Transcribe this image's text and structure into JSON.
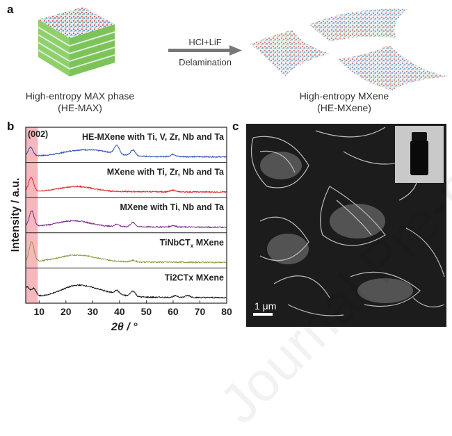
{
  "panel_a": {
    "label": "a",
    "left_caption_line1": "High-entropy MAX phase",
    "left_caption_line2": "(HE-MAX)",
    "arrow_top": "HCl+LiF",
    "arrow_bottom": "Delamination",
    "right_caption_line1": "High-entropy MXene",
    "right_caption_line2": "(HE-MXene)"
  },
  "panel_b": {
    "label": "b"
  },
  "panel_c": {
    "label": "c",
    "scale_bar": "1 μm"
  },
  "watermark": "Journal Pre-proof",
  "chart_data": {
    "type": "line",
    "xlabel": "2θ / °",
    "ylabel": "Intensity / a.u.",
    "xlim": [
      5,
      80
    ],
    "xticks": [
      10,
      20,
      30,
      40,
      50,
      60,
      70,
      80
    ],
    "highlight_band": {
      "x": [
        5,
        9.5
      ],
      "label": "(002)",
      "color": "#f4a6ad"
    },
    "series": [
      {
        "name": "HE-MXene with Ti, V, Zr, Nb and Ta",
        "color": "#2f4fb0",
        "peaks": [
          [
            6.8,
            0.45
          ],
          [
            24,
            0.25
          ],
          [
            33.5,
            0.2
          ],
          [
            39,
            0.45
          ],
          [
            45,
            0.3
          ],
          [
            60,
            0.12
          ]
        ]
      },
      {
        "name": "MXene with Ti, Zr, Nb and Ta",
        "color": "#e0262b",
        "peaks": [
          [
            7,
            0.7
          ],
          [
            24,
            0.25
          ],
          [
            60,
            0.08
          ]
        ]
      },
      {
        "name": "MXene with Ti, Nb and Ta",
        "color": "#7d2a8c",
        "peaks": [
          [
            7.2,
            0.8
          ],
          [
            23,
            0.3
          ],
          [
            39,
            0.12
          ],
          [
            45,
            0.22
          ],
          [
            60,
            0.08
          ]
        ]
      },
      {
        "name": "TiNbCTx MXene",
        "sub": "x",
        "color": "#8c9a3c",
        "peaks": [
          [
            7.2,
            1.0
          ],
          [
            22,
            0.25
          ],
          [
            29,
            0.15
          ],
          [
            45,
            0.08
          ]
        ]
      },
      {
        "name": "Ti2CTx MXene",
        "color": "#111111",
        "peaks": [
          [
            5.5,
            0.5
          ],
          [
            8,
            0.4
          ],
          [
            24,
            0.55
          ],
          [
            34,
            0.2
          ],
          [
            39,
            0.18
          ],
          [
            45,
            0.28
          ],
          [
            61,
            0.08
          ],
          [
            65.5,
            0.1
          ]
        ]
      }
    ]
  }
}
